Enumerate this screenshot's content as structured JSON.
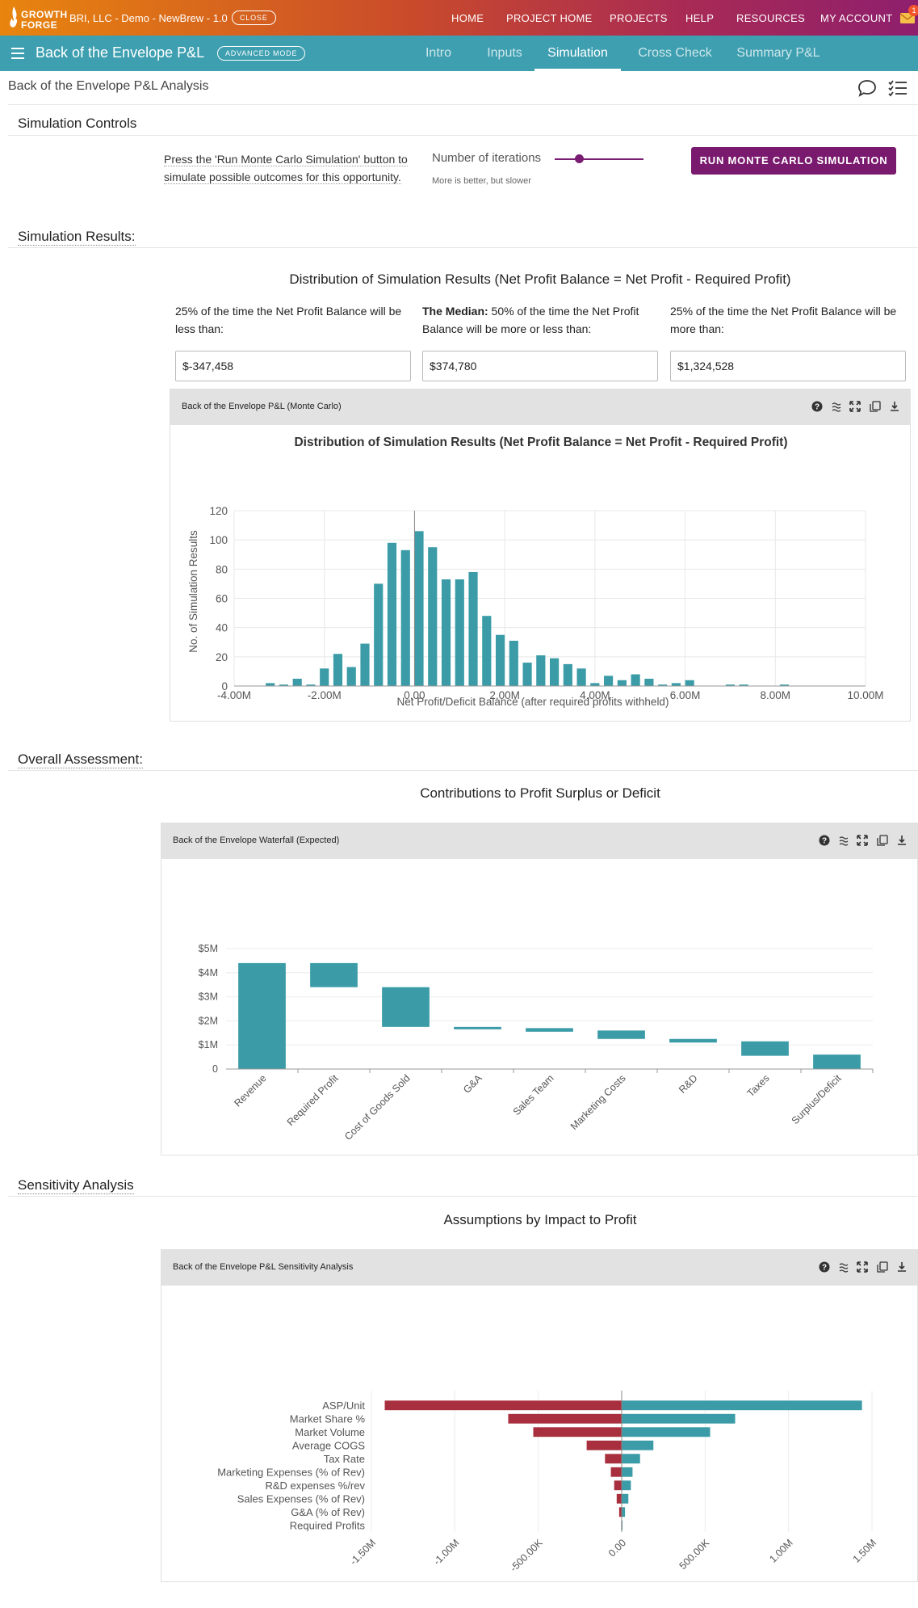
{
  "topbar": {
    "logo_line1": "GROWTH",
    "logo_line2": "FORGE",
    "org": "BRI, LLC - Demo - NewBrew - 1.0",
    "close_label": "CLOSE",
    "nav": [
      "HOME",
      "PROJECT HOME",
      "PROJECTS",
      "HELP",
      "RESOURCES",
      "MY ACCOUNT"
    ],
    "mail_badge": "1"
  },
  "appbar": {
    "title": "Back of the Envelope P&L",
    "mode_badge": "ADVANCED MODE",
    "tabs": [
      "Intro",
      "Inputs",
      "Simulation",
      "Cross Check",
      "Summary P&L"
    ],
    "active_tab": "Simulation"
  },
  "page": {
    "title": "Back of the Envelope P&L Analysis"
  },
  "controls": {
    "section_title": "Simulation Controls",
    "instructions": "Press the 'Run Monte Carlo Simulation' button to simulate possible outcomes for this opportunity.",
    "iterations_label": "Number of iterations",
    "iterations_hint": "More is better, but slower",
    "iterations_slider_fraction": 0.27,
    "run_button": "RUN MONTE CARLO SIMULATION"
  },
  "results": {
    "section_title": "Simulation Results:",
    "heading": "Distribution of Simulation Results (Net Profit Balance = Net Profit - Required Profit)",
    "low_text": "25% of the time the Net Profit Balance will be less than:",
    "median_bold": "The Median:",
    "median_text": " 50% of the time the Net Profit Balance will be more or less than:",
    "high_text": "25% of the time the Net Profit Balance will be more than:",
    "low_value": "$-347,458",
    "median_value": "$374,780",
    "high_value": "$1,324,528",
    "panel_title": "Back of the Envelope P&L (Monte Carlo)"
  },
  "assessment": {
    "section_title": "Overall Assessment:",
    "heading": "Contributions to Profit Surplus or Deficit",
    "panel_title": "Back of the Envelope Waterfall (Expected)"
  },
  "sensitivity": {
    "section_title": "Sensitivity Analysis",
    "heading": "Assumptions by Impact to Profit",
    "panel_title": "Back of the Envelope P&L Sensitivity Analysis"
  },
  "colors": {
    "teal": "#3d9fb0",
    "bar": "#3b9ca8",
    "red": "#a8303e",
    "purple": "#7a1a6e"
  },
  "chart_data": [
    {
      "type": "bar",
      "title": "Distribution of Simulation Results (Net Profit Balance = Net Profit - Required Profit)",
      "xlabel": "Net Profit/Deficit Balance (after required profits withheld)",
      "ylabel": "No. of Simulation Results",
      "xlim": [
        -4000000,
        10000000
      ],
      "ylim": [
        0,
        120
      ],
      "x_ticks": [
        "-4.00M",
        "-2.00M",
        "0.00",
        "2.00M",
        "4.00M",
        "6.00M",
        "8.00M",
        "10.00M"
      ],
      "y_ticks": [
        "0",
        "20",
        "40",
        "60",
        "80",
        "100",
        "120"
      ],
      "bin_width": 200000,
      "x": [
        -3200000,
        -2900000,
        -2600000,
        -2300000,
        -2000000,
        -1700000,
        -1400000,
        -1100000,
        -800000,
        -500000,
        -200000,
        100000,
        400000,
        700000,
        1000000,
        1300000,
        1600000,
        1900000,
        2200000,
        2500000,
        2800000,
        3100000,
        3400000,
        3700000,
        4000000,
        4300000,
        4600000,
        4900000,
        5200000,
        5500000,
        5800000,
        6100000,
        6400000,
        6700000,
        7000000,
        7300000,
        7600000,
        7900000,
        8200000,
        8500000,
        8800000
      ],
      "values": [
        2,
        1,
        5,
        1,
        12,
        22,
        13,
        29,
        70,
        98,
        93,
        106,
        95,
        73,
        73,
        78,
        48,
        35,
        31,
        16,
        21,
        19,
        15,
        12,
        2,
        7,
        4,
        8,
        5,
        1,
        2,
        4,
        0,
        0,
        1,
        1,
        0,
        0,
        1,
        0,
        0
      ]
    },
    {
      "type": "bar",
      "subtype": "waterfall",
      "title": "Contributions to Profit Surplus or Deficit",
      "categories": [
        "Revenue",
        "Required Profit",
        "Cost of Goods Sold",
        "G&A",
        "Sales Team",
        "Marketing Costs",
        "R&D",
        "Taxes",
        "Surplus/Deficit"
      ],
      "ranges": [
        [
          0,
          4.4
        ],
        [
          3.4,
          4.4
        ],
        [
          1.75,
          3.4
        ],
        [
          1.65,
          1.75
        ],
        [
          1.55,
          1.7
        ],
        [
          1.25,
          1.6
        ],
        [
          1.1,
          1.25
        ],
        [
          0.55,
          1.15
        ],
        [
          0,
          0.6
        ]
      ],
      "y_ticks": [
        "0",
        "$1M",
        "$2M",
        "$3M",
        "$4M",
        "$5M"
      ],
      "ylim": [
        0,
        5
      ]
    },
    {
      "type": "bar",
      "subtype": "tornado",
      "title": "Assumptions by Impact to Profit",
      "categories": [
        "ASP/Unit",
        "Market Share %",
        "Market Volume",
        "Average COGS",
        "Tax Rate",
        "Marketing Expenses (% of Rev)",
        "R&D expenses %/rev",
        "Sales Expenses (% of Rev)",
        "G&A (% of Rev)",
        "Required Profits"
      ],
      "low": [
        -1420000,
        -680000,
        -530000,
        -210000,
        -100000,
        -65000,
        -45000,
        -30000,
        -15000,
        -3000
      ],
      "high": [
        1440000,
        680000,
        530000,
        190000,
        110000,
        65000,
        55000,
        40000,
        20000,
        3000
      ],
      "xlim": [
        -1500000,
        1500000
      ],
      "x_ticks": [
        "-1.50M",
        "-1.00M",
        "-500.00K",
        "0.00",
        "500.00K",
        "1.00M",
        "1.50M"
      ]
    }
  ]
}
